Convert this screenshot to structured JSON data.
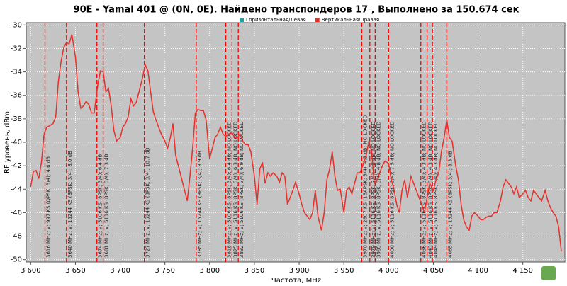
{
  "chart_data": {
    "type": "line",
    "title": "90E - Yamal 401 @  (0N, 0E). Найдено транспондеров 17 , Выполнено за 150.674 сек",
    "x_label": "Частота, MHz",
    "y_label": "RF уровень, dBm",
    "legend": [
      {
        "name": "Горизонтальная/Левая",
        "color": "#2a9d9f"
      },
      {
        "name": "Вертикальная/Правая",
        "color": "#e8302a"
      }
    ],
    "xlim": [
      3595,
      4197
    ],
    "ylim": [
      -50.2,
      -29.8
    ],
    "xticks": [
      {
        "value": 3600,
        "label": "3 600"
      },
      {
        "value": 3650,
        "label": "3 650"
      },
      {
        "value": 3700,
        "label": "3 700"
      },
      {
        "value": 3750,
        "label": "3 750"
      },
      {
        "value": 3800,
        "label": "3 800"
      },
      {
        "value": 3850,
        "label": "3 850"
      },
      {
        "value": 3900,
        "label": "3 900"
      },
      {
        "value": 3950,
        "label": "3 950"
      },
      {
        "value": 4000,
        "label": "4 000"
      },
      {
        "value": 4050,
        "label": "4 050"
      },
      {
        "value": 4100,
        "label": "4 100"
      },
      {
        "value": 4150,
        "label": "4 150"
      }
    ],
    "yticks": [
      -30,
      -32,
      -34,
      -36,
      -38,
      -40,
      -42,
      -44,
      -46,
      -48,
      -50
    ],
    "grid": true,
    "x": [
      3600,
      3603,
      3606,
      3609,
      3612,
      3615,
      3618,
      3621,
      3625,
      3628,
      3631,
      3634,
      3637,
      3640,
      3643,
      3646,
      3650,
      3653,
      3656,
      3659,
      3662,
      3665,
      3668,
      3671,
      3675,
      3678,
      3681,
      3684,
      3687,
      3690,
      3693,
      3696,
      3700,
      3703,
      3706,
      3709,
      3712,
      3715,
      3718,
      3721,
      3725,
      3728,
      3731,
      3734,
      3737,
      3740,
      3743,
      3746,
      3750,
      3753,
      3756,
      3759,
      3762,
      3765,
      3768,
      3771,
      3775,
      3778,
      3781,
      3784,
      3787,
      3790,
      3793,
      3796,
      3800,
      3803,
      3806,
      3809,
      3812,
      3815,
      3818,
      3821,
      3825,
      3828,
      3831,
      3834,
      3837,
      3840,
      3843,
      3846,
      3850,
      3853,
      3856,
      3859,
      3862,
      3865,
      3868,
      3871,
      3875,
      3878,
      3881,
      3884,
      3887,
      3890,
      3893,
      3896,
      3900,
      3903,
      3906,
      3909,
      3912,
      3915,
      3918,
      3921,
      3925,
      3928,
      3931,
      3934,
      3937,
      3940,
      3943,
      3946,
      3950,
      3953,
      3956,
      3959,
      3962,
      3965,
      3968,
      3971,
      3975,
      3978,
      3981,
      3984,
      3987,
      3990,
      3993,
      3996,
      4000,
      4003,
      4006,
      4009,
      4012,
      4015,
      4018,
      4021,
      4025,
      4028,
      4031,
      4034,
      4037,
      4040,
      4043,
      4046,
      4050,
      4053,
      4056,
      4059,
      4062,
      4065,
      4068,
      4071,
      4075,
      4078,
      4081,
      4084,
      4087,
      4090,
      4093,
      4096,
      4100,
      4103,
      4106,
      4109,
      4112,
      4115,
      4118,
      4121,
      4125,
      4128,
      4131,
      4134,
      4137,
      4140,
      4143,
      4146,
      4150,
      4153,
      4156,
      4159,
      4162,
      4165,
      4168,
      4171,
      4175,
      4178,
      4181,
      4184,
      4187,
      4190,
      4193
    ],
    "series": [
      {
        "color": "#e8302a",
        "values": [
          -43.8,
          -42.5,
          -42.4,
          -43.1,
          -41.7,
          -39.3,
          -38.7,
          -38.6,
          -38.4,
          -37.8,
          -34.8,
          -33.1,
          -31.9,
          -31.5,
          -31.6,
          -30.8,
          -32.7,
          -35.7,
          -37.1,
          -36.9,
          -36.5,
          -36.8,
          -37.5,
          -37.5,
          -35.1,
          -33.9,
          -34.0,
          -35.7,
          -35.4,
          -36.9,
          -39.0,
          -39.9,
          -39.6,
          -38.7,
          -38.4,
          -37.8,
          -36.3,
          -36.9,
          -36.6,
          -35.7,
          -34.5,
          -33.4,
          -33.9,
          -35.7,
          -37.4,
          -38.1,
          -38.7,
          -39.3,
          -39.9,
          -40.5,
          -39.6,
          -38.4,
          -41.1,
          -42.0,
          -42.9,
          -43.8,
          -45.0,
          -42.9,
          -40.5,
          -37.5,
          -37.2,
          -37.3,
          -37.3,
          -38.1,
          -41.4,
          -40.5,
          -39.6,
          -39.3,
          -38.7,
          -39.3,
          -39.5,
          -39.3,
          -39.2,
          -39.6,
          -39.6,
          -39.3,
          -39.9,
          -40.2,
          -40.2,
          -40.8,
          -42.9,
          -45.3,
          -42.3,
          -41.7,
          -43.5,
          -42.6,
          -42.9,
          -42.6,
          -42.9,
          -43.4,
          -42.6,
          -42.9,
          -45.3,
          -44.7,
          -44.1,
          -43.4,
          -44.4,
          -45.3,
          -46.0,
          -46.3,
          -46.6,
          -46.0,
          -44.1,
          -46.3,
          -47.5,
          -46.0,
          -43.2,
          -42.3,
          -40.8,
          -42.9,
          -44.1,
          -44.0,
          -46.0,
          -44.1,
          -43.8,
          -44.4,
          -43.5,
          -42.6,
          -42.6,
          -42.0,
          -41.1,
          -39.9,
          -40.8,
          -43.5,
          -43.2,
          -42.6,
          -42.0,
          -41.6,
          -41.8,
          -43.2,
          -44.0,
          -45.3,
          -46.0,
          -44.1,
          -43.2,
          -44.7,
          -42.9,
          -43.5,
          -44.1,
          -44.7,
          -45.3,
          -46.0,
          -44.7,
          -43.5,
          -44.1,
          -43.2,
          -42.6,
          -40.8,
          -39.6,
          -38.1,
          -39.6,
          -39.9,
          -42.0,
          -43.2,
          -45.3,
          -46.6,
          -47.2,
          -47.5,
          -46.3,
          -46.0,
          -46.3,
          -46.6,
          -46.6,
          -46.4,
          -46.3,
          -46.3,
          -46.0,
          -46.0,
          -45.0,
          -43.8,
          -43.2,
          -43.5,
          -43.8,
          -44.4,
          -43.8,
          -44.7,
          -44.4,
          -44.1,
          -44.7,
          -45.0,
          -44.1,
          -44.4,
          -44.7,
          -45.0,
          -44.1,
          -45.0,
          -45.6,
          -46.0,
          -46.3,
          -47.2,
          -49.3
        ]
      }
    ],
    "markers": [
      {
        "x": 3616,
        "label": "3616 MHz; V; 997 KS (QPSK; 3/4); 4.6 dB"
      },
      {
        "x": 3640,
        "label": "3640 MHz; V; 15244 KS (8PSK; 3/4); 8.0 dB"
      },
      {
        "x": 3674,
        "label": "3674 MHz; V; 5106 KS (8PSK; 3/4); 6.4 dB"
      },
      {
        "x": 3681,
        "label": "3681 MHz; V; 5116 KS (8PSK; 3/4); 7.3 dB"
      },
      {
        "x": 3727,
        "label": "3727 MHz; V; 15244 KS (8PSK; 3/4); 10.7 dB"
      },
      {
        "x": 3785,
        "label": "3785 MHz; V; 15244 KS (8PSK; 3/4); 8.9 dB"
      },
      {
        "x": 3818,
        "label": "3818 MHz; V; 5106 KS (8PSK; 3/4); 6.4 dB; NO LOCKED"
      },
      {
        "x": 3825,
        "label": "3825 MHz; V; 5116 KS (8PSK; 3/4); 6.3 dB; NO LOCKED"
      },
      {
        "x": 3832,
        "label": "3832 MHz; V; 5106 KS (8PSK; 3/4); 6.9 dB; NO LOCKED"
      },
      {
        "x": 3970,
        "label": "3970 MHz; V; 2607 KS (16APSK; 3/4); 4.3 dB; NO LOCKED"
      },
      {
        "x": 3979,
        "label": "3979 MHz; V; 5116 KS (8PSK; 3/4); 4.8 dB; NO LOCKED"
      },
      {
        "x": 3985,
        "label": "3985 MHz; V; 5116 KS (8PSK; 3/4); 4.8 dB; NO LOCKED"
      },
      {
        "x": 4000,
        "label": "4000 MHz; V; 5116 KS (8PSK; 3/4); 7.5 dB; NO LOCKED"
      },
      {
        "x": 4036,
        "label": "4036 MHz; V; 5116 KS (8PSK; 3/4); 4.3 dB; NO LOCKED"
      },
      {
        "x": 4043,
        "label": "4043 MHz; V; 5116 KS (8PSK; 3/4); 4.3 dB; NO LOCKED"
      },
      {
        "x": 4049,
        "label": "4049 MHz; V; 5116 KS (8PSK; 3/4); 4.3 dB; NO LOCKED"
      },
      {
        "x": 4065,
        "label": "4065 MHz; V; 15244 KS (8PSK; 3/4); 8.3 dB"
      }
    ]
  }
}
